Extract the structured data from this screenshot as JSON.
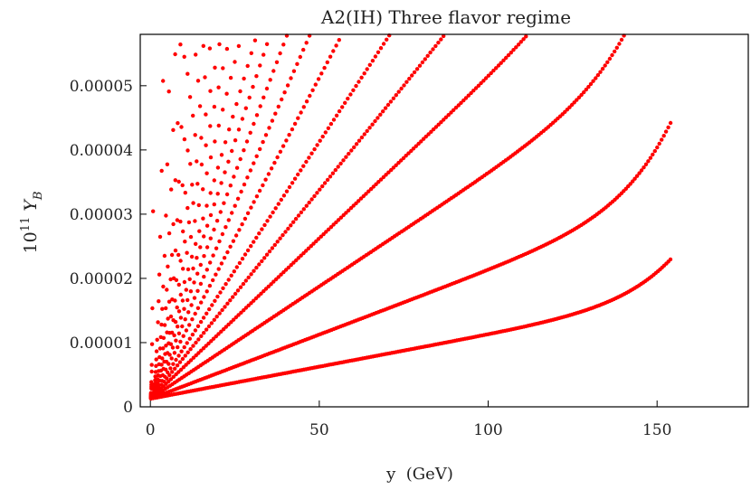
{
  "chart_data": {
    "type": "scatter",
    "title": "A2(IH) Three flavor regime",
    "xlabel": "y  (GeV)",
    "ylabel": {
      "prefix": "10",
      "exponent": "11",
      "symbol": "Y",
      "subscript": "B"
    },
    "xlim": [
      -3,
      177
    ],
    "ylim": [
      0,
      5.8e-05
    ],
    "x_ticks": [
      {
        "value": 0,
        "label": "0"
      },
      {
        "value": 50,
        "label": "50"
      },
      {
        "value": 100,
        "label": "100"
      },
      {
        "value": 150,
        "label": "150"
      }
    ],
    "y_ticks": [
      {
        "value": 0,
        "label": "0"
      },
      {
        "value": 1e-05,
        "label": "0.00001"
      },
      {
        "value": 2e-05,
        "label": "0.00002"
      },
      {
        "value": 3e-05,
        "label": "0.00003"
      },
      {
        "value": 4e-05,
        "label": "0.00004"
      },
      {
        "value": 5e-05,
        "label": "0.00005"
      }
    ],
    "grid": false,
    "marker_color": "#ff0000",
    "series": [
      {
        "points_description_free": true,
        "families": [
          {
            "k": 7.3e-05,
            "x_start": 1.0,
            "x_step": 7.5,
            "x_max": 180
          },
          {
            "k": 3.65e-05,
            "x_start": 0.8,
            "x_step": 5.8,
            "x_max": 180
          },
          {
            "k": 2.35e-05,
            "x_start": 0.6,
            "x_step": 4.7,
            "x_max": 180
          },
          {
            "k": 1.7e-05,
            "x_start": 0.5,
            "x_step": 3.9,
            "x_max": 180
          },
          {
            "k": 1.32e-05,
            "x_start": 0.4,
            "x_step": 3.35,
            "x_max": 180
          },
          {
            "k": 1.06e-05,
            "x_start": 0.4,
            "x_step": 2.95,
            "x_max": 180
          },
          {
            "k": 8.7e-06,
            "x_start": 0.3,
            "x_step": 2.6,
            "x_max": 180
          },
          {
            "k": 7.3e-06,
            "x_start": 0.3,
            "x_step": 2.35,
            "x_max": 180
          },
          {
            "k": 6.2e-06,
            "x_start": 0.3,
            "x_step": 2.15,
            "x_max": 180
          },
          {
            "k": 5.3e-06,
            "x_start": 0.3,
            "x_step": 1.95,
            "x_max": 180
          },
          {
            "k": 4.6e-06,
            "x_start": 0.2,
            "x_step": 1.8,
            "x_max": 180
          },
          {
            "k": 4e-06,
            "x_start": 0.2,
            "x_step": 1.65,
            "x_max": 180
          },
          {
            "k": 3.5e-06,
            "x_start": 0.2,
            "x_step": 1.55,
            "x_max": 180
          },
          {
            "k": 3.1e-06,
            "x_start": 0.2,
            "x_step": 1.45,
            "x_max": 180
          },
          {
            "k": 2.7e-06,
            "x_start": 0.2,
            "x_step": 1.35,
            "x_max": 180
          },
          {
            "k": 2.4e-06,
            "x_start": 0.2,
            "x_step": 1.25,
            "x_max": 180
          },
          {
            "k": 2.1e-06,
            "x_start": 0.2,
            "x_step": 1.18,
            "x_max": 180
          },
          {
            "k": 1.8e-06,
            "x_start": 0.2,
            "x_step": 1.1,
            "x_max": 180
          },
          {
            "k": 1.6e-06,
            "x_start": 0.2,
            "x_step": 1.04,
            "x_max": 180
          },
          {
            "k": 1.4e-06,
            "x_start": 0.2,
            "x_step": 0.98,
            "x_max": 180
          },
          {
            "k": 1.2e-06,
            "x_start": 0.2,
            "x_step": 0.92,
            "x_max": 180
          },
          {
            "k": 1e-06,
            "x_start": 0.2,
            "x_step": 0.87,
            "x_max": 180
          },
          {
            "k": 8e-07,
            "x_start": 0.2,
            "x_step": 0.82,
            "x_max": 180
          },
          {
            "k": 6.5e-07,
            "x_start": 0.2,
            "x_step": 0.78,
            "x_max": 180
          },
          {
            "k": 5e-07,
            "x_start": 0.2,
            "x_step": 0.74,
            "x_max": 180
          },
          {
            "k": 3.5e-07,
            "x_start": 0.2,
            "x_step": 0.7,
            "x_max": 180
          },
          {
            "k": 2e-07,
            "x_start": 0.2,
            "x_step": 0.66,
            "x_max": 180
          },
          {
            "k": 1e-07,
            "x_start": 0.2,
            "x_step": 0.62,
            "x_max": 180
          }
        ],
        "model": "y = (1.25e-6 + k * x) * (1 + 0.38 * (x/154)^10), one point per x step, x limited by y <= ylim and x <= 154"
      }
    ]
  }
}
